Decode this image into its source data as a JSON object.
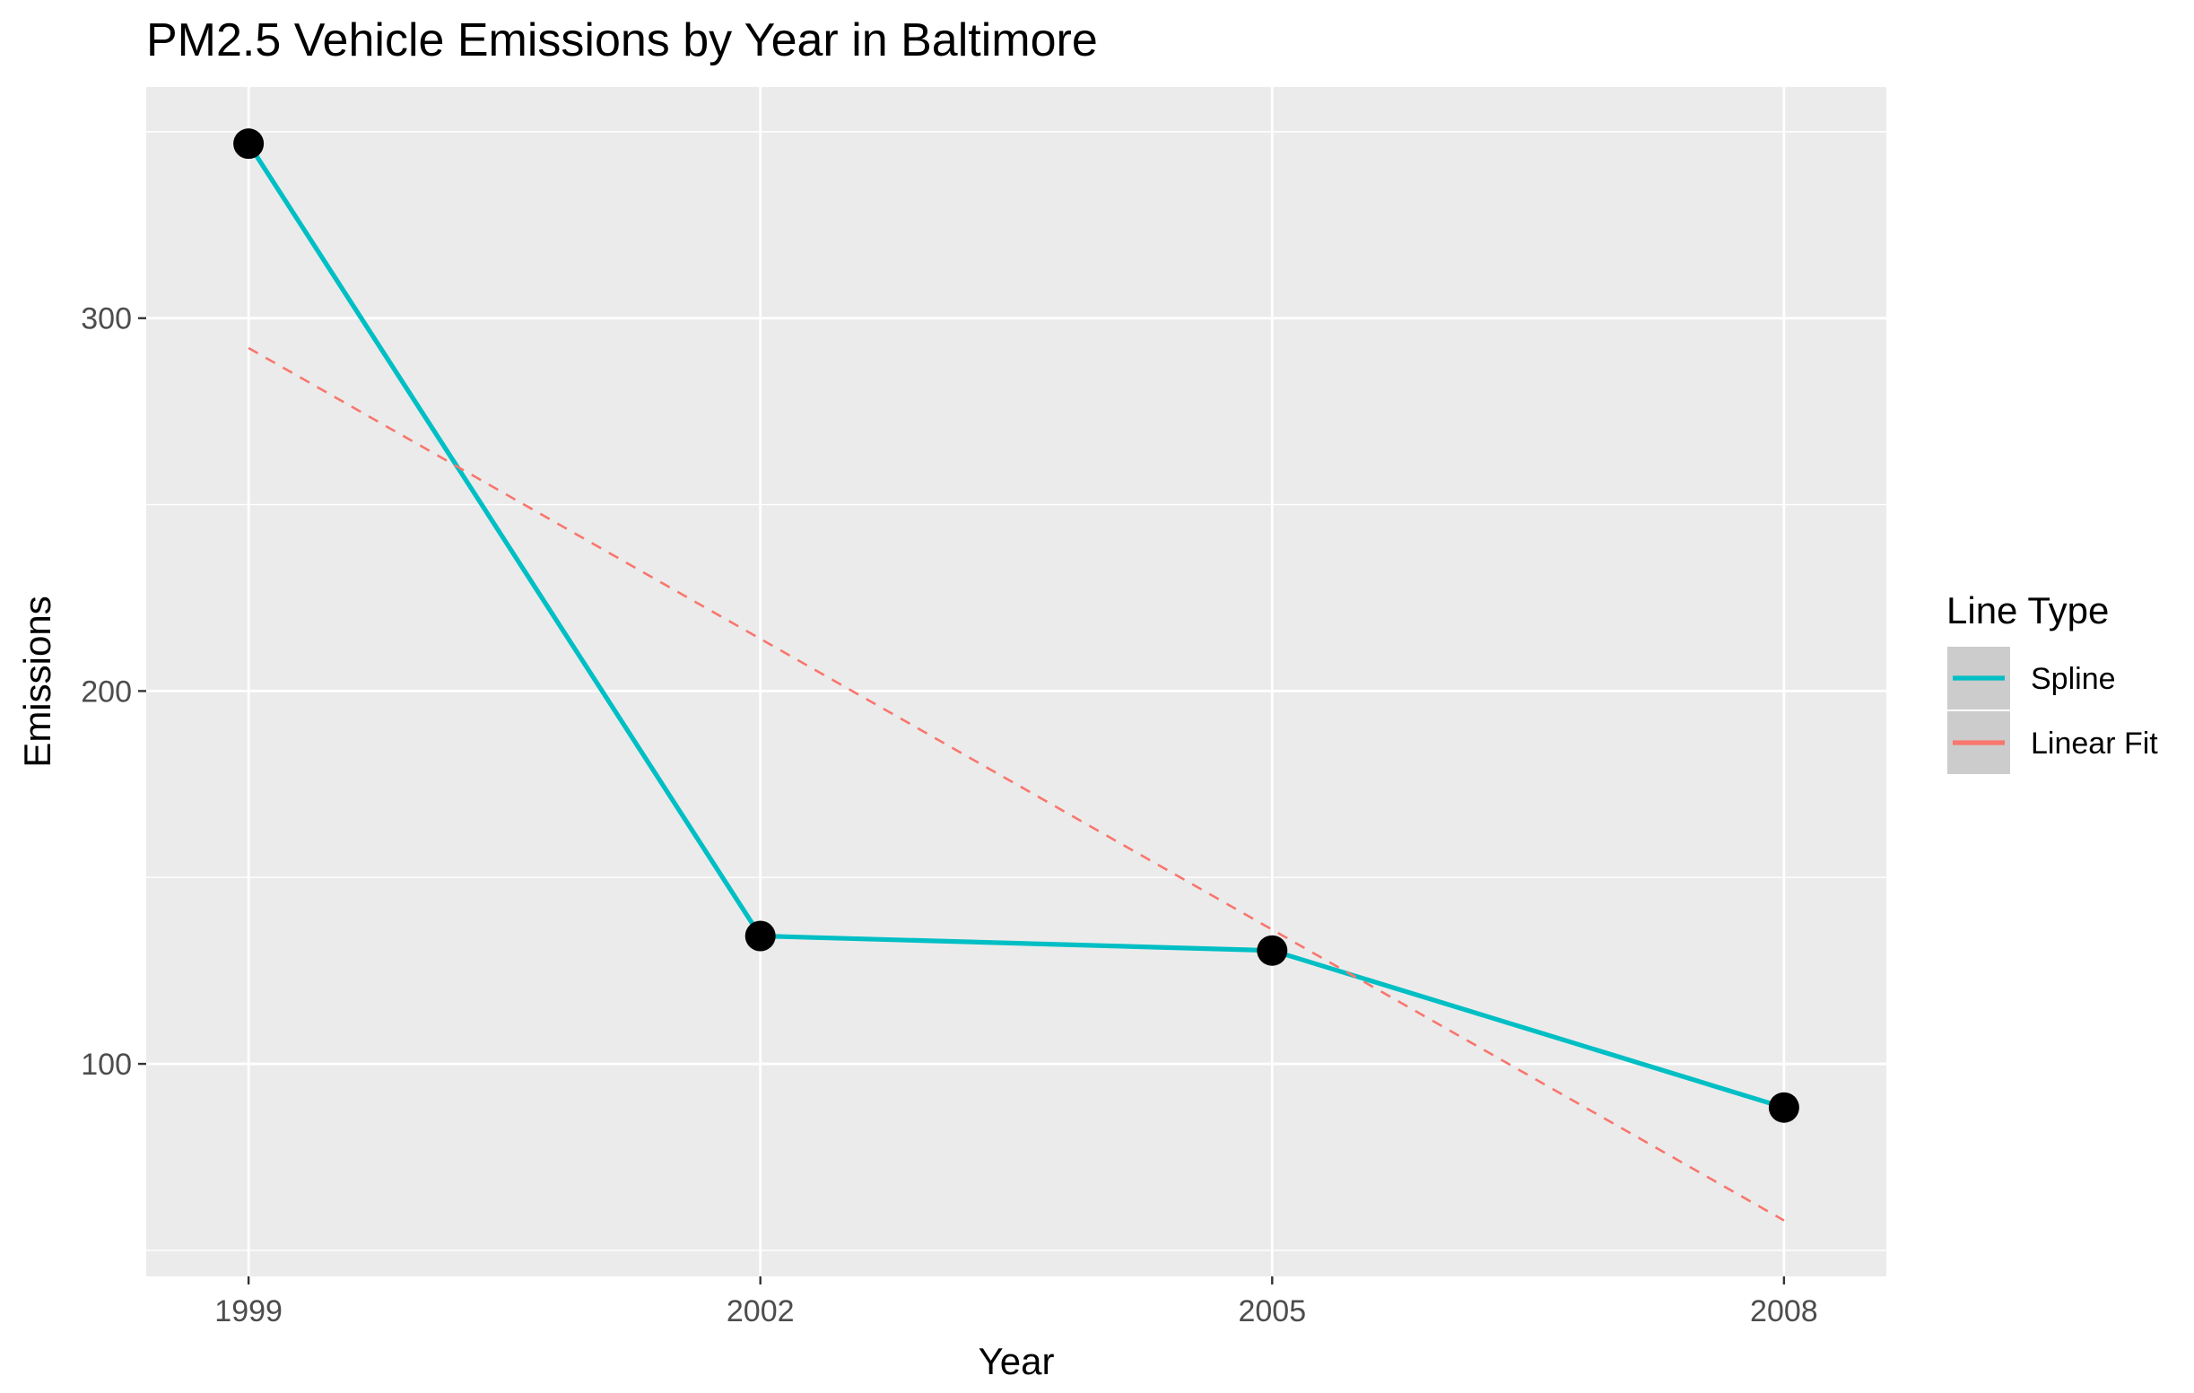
{
  "chart_data": {
    "type": "line",
    "title": "PM2.5 Vehicle Emissions by Year in Baltimore",
    "xlabel": "Year",
    "ylabel": "Emissions",
    "x": [
      "1999",
      "2002",
      "2005",
      "2008"
    ],
    "xlim": [
      1998.4,
      2008.6
    ],
    "ylim": [
      43,
      362
    ],
    "y_ticks": [
      100,
      200,
      300
    ],
    "y_tick_labels": [
      "100",
      "200",
      "300"
    ],
    "y_minor_ticks": [
      50,
      150,
      250,
      350
    ],
    "grid": true,
    "legend": {
      "title": "Line Type",
      "placement": "right"
    },
    "points": {
      "x": [
        1999,
        2002,
        2005,
        2008
      ],
      "y": [
        346.8,
        134.3,
        130.4,
        88.3
      ],
      "color": "#000000"
    },
    "series": [
      {
        "name": "Spline",
        "style": "solid",
        "color": "#00BFC4",
        "x": [
          1999,
          2002,
          2005,
          2008
        ],
        "y": [
          346.8,
          134.3,
          130.4,
          88.3
        ]
      },
      {
        "name": "Linear Fit",
        "style": "dashed",
        "color": "#F8766D",
        "x": [
          1999,
          2008
        ],
        "y": [
          292.0,
          58.0
        ]
      }
    ],
    "colors": {
      "panel": "#EBEBEB",
      "grid_major": "#FFFFFF",
      "legend_key": "#CCCCCC",
      "tick": "#333333"
    }
  }
}
